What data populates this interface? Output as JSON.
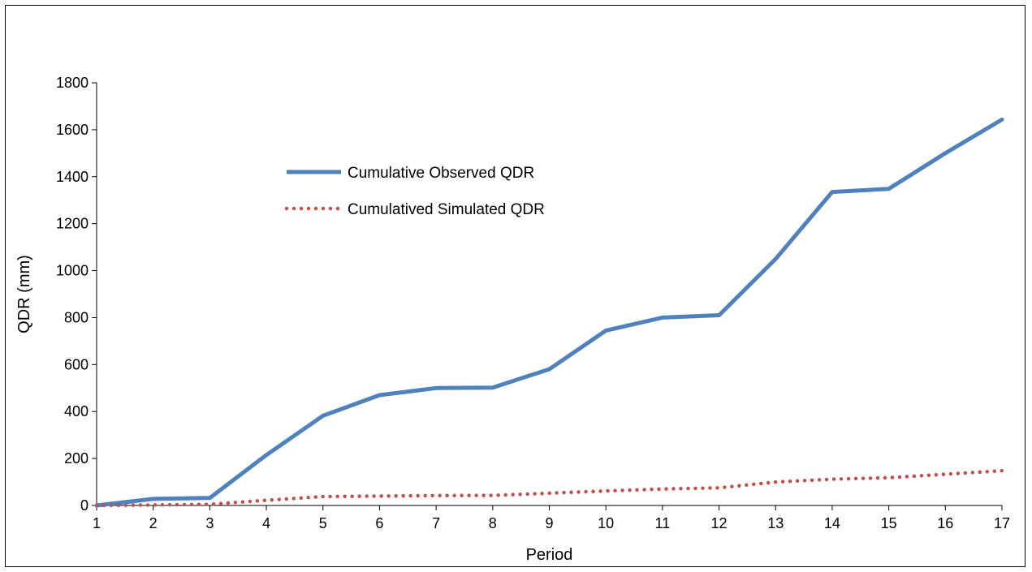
{
  "chart_data": {
    "type": "line",
    "title": "",
    "xlabel": "Period",
    "ylabel": "QDR (mm)",
    "x": [
      1,
      2,
      3,
      4,
      5,
      6,
      7,
      8,
      9,
      10,
      11,
      12,
      13,
      14,
      15,
      16,
      17
    ],
    "x_tick_labels": [
      "1",
      "2",
      "3",
      "4",
      "5",
      "6",
      "7",
      "8",
      "9",
      "10",
      "11",
      "12",
      "13",
      "14",
      "15",
      "16",
      "17"
    ],
    "ylim": [
      0,
      1800
    ],
    "y_ticks": [
      0,
      200,
      400,
      600,
      800,
      1000,
      1200,
      1400,
      1600,
      1800
    ],
    "grid": false,
    "legend_position": "upper-left-inside",
    "series": [
      {
        "name": "Cumulative Observed QDR",
        "style": "solid",
        "color": "#4F81BD",
        "values": [
          0,
          28,
          32,
          215,
          382,
          470,
          500,
          502,
          580,
          745,
          800,
          810,
          1050,
          1335,
          1348,
          1500,
          1643
        ]
      },
      {
        "name": "Cumulatived Simulated QDR",
        "style": "dotted",
        "color": "#C0504D",
        "values": [
          0,
          2,
          5,
          22,
          38,
          40,
          42,
          43,
          52,
          62,
          70,
          75,
          100,
          112,
          118,
          133,
          148
        ]
      }
    ]
  }
}
